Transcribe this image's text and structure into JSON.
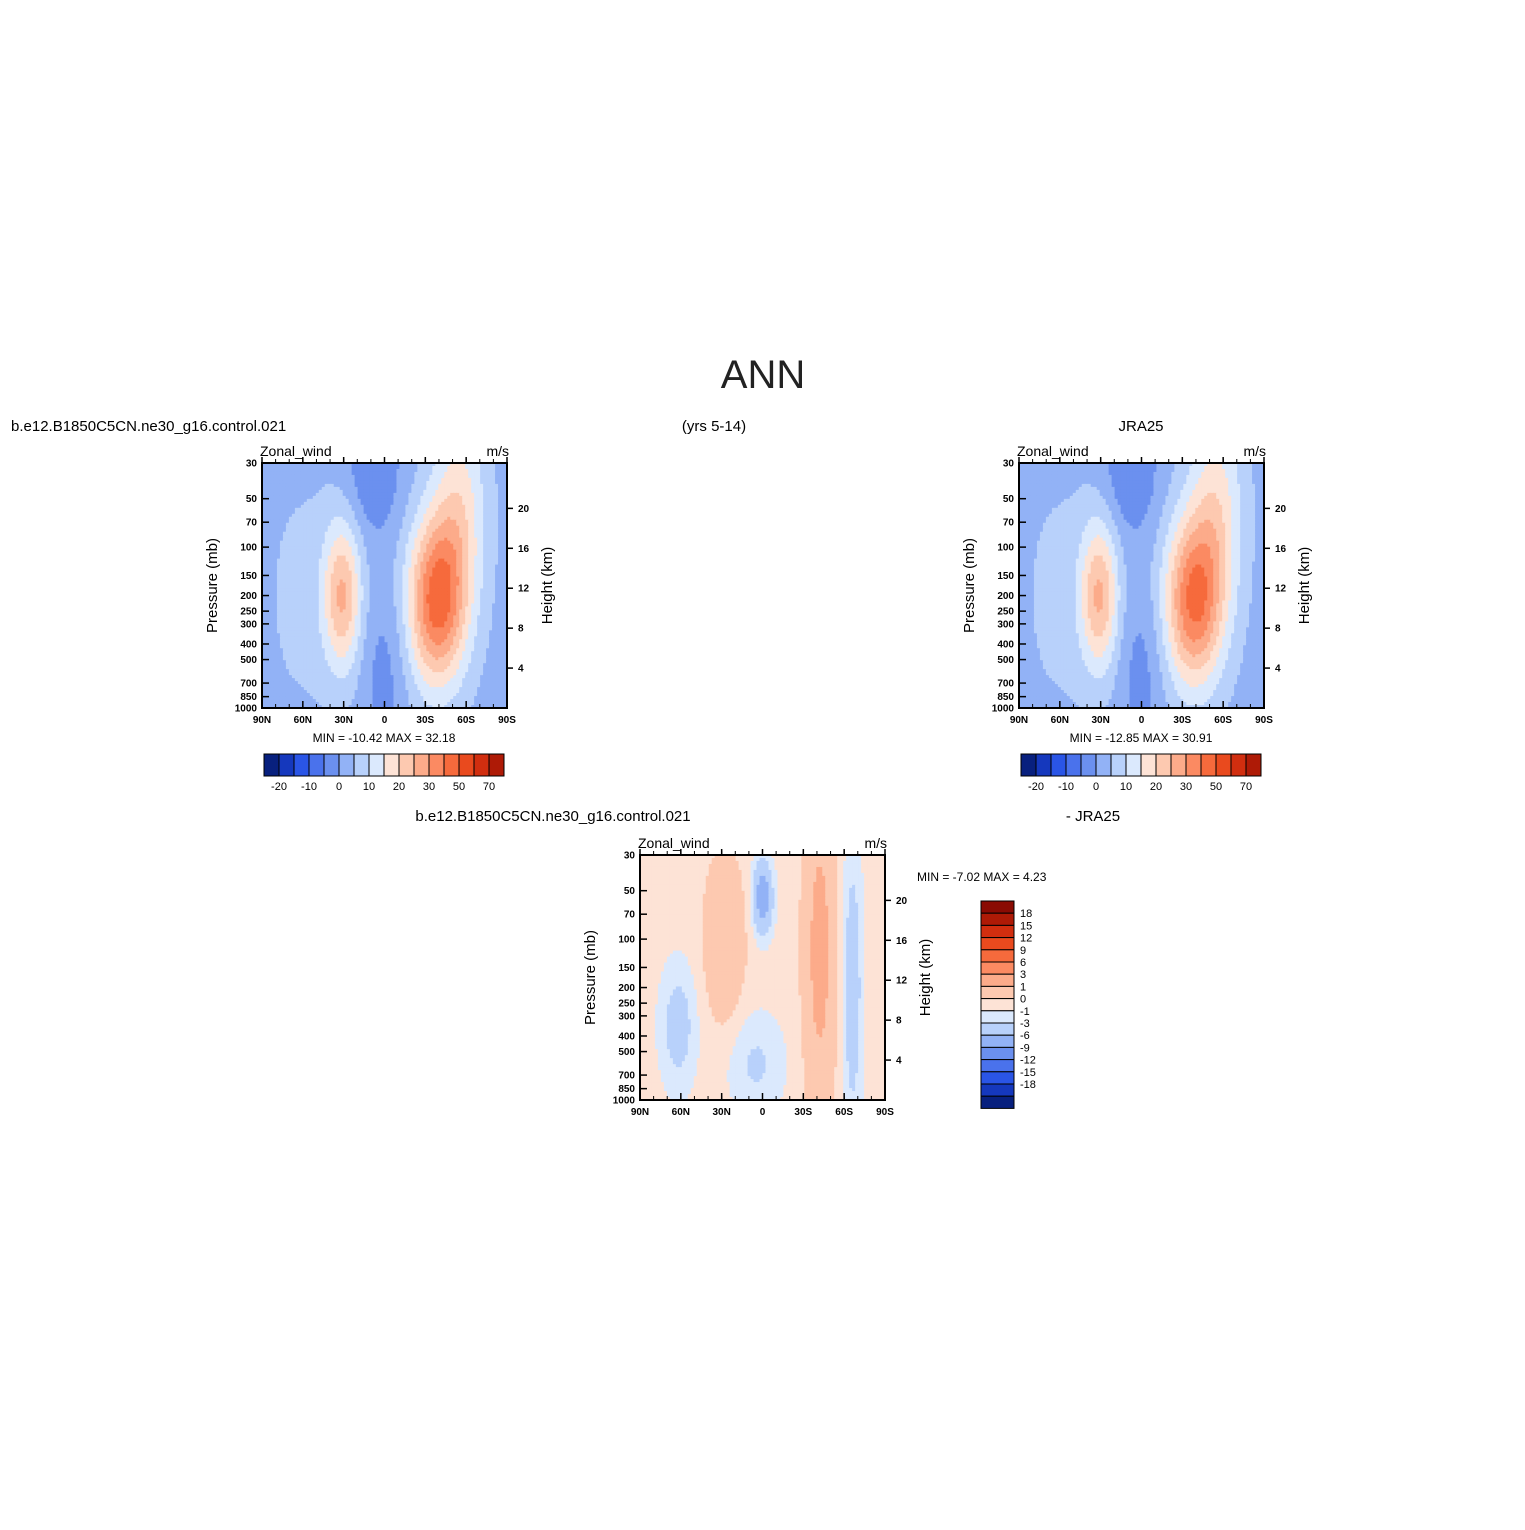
{
  "page_title": "ANN",
  "chart_data": [
    {
      "type": "heatmap",
      "case_label": "b.e12.B1850C5CN.ne30_g16.control.021",
      "period_label": "(yrs 5-14)",
      "left_title": "Zonal_wind",
      "right_title": "m/s",
      "ylabel": "Pressure (mb)",
      "ylabel_right": "Height (km)",
      "x_tick_labels": [
        "90N",
        "60N",
        "30N",
        "0",
        "30S",
        "60S",
        "90S"
      ],
      "y_tick_labels": [
        30,
        50,
        70,
        100,
        150,
        200,
        250,
        300,
        400,
        500,
        700,
        850,
        1000
      ],
      "y_right_tick_labels": [
        4,
        8,
        12,
        16,
        20
      ],
      "stats_text": "MIN = -10.42   MAX = 32.18",
      "min": -10.42,
      "max": 32.18,
      "colorbar_levels": [
        -25,
        -20,
        -15,
        -10,
        -5,
        0,
        5,
        10,
        15,
        20,
        25,
        30,
        40,
        50,
        60,
        70
      ],
      "colorbar_tick_labels": [
        "-20",
        "-10",
        "0",
        "10",
        "20",
        "30",
        "50",
        "70"
      ],
      "jets": [
        {
          "lat": -35,
          "pressure": 200,
          "value": 32.18
        },
        {
          "lat": 30,
          "pressure": 200,
          "value": 22
        }
      ]
    },
    {
      "type": "heatmap",
      "case_label": "JRA25",
      "left_title": "Zonal_wind",
      "right_title": "m/s",
      "ylabel": "Pressure (mb)",
      "ylabel_right": "Height (km)",
      "x_tick_labels": [
        "90N",
        "60N",
        "30N",
        "0",
        "30S",
        "60S",
        "90S"
      ],
      "y_tick_labels": [
        30,
        50,
        70,
        100,
        150,
        200,
        250,
        300,
        400,
        500,
        700,
        850,
        1000
      ],
      "y_right_tick_labels": [
        4,
        8,
        12,
        16,
        20
      ],
      "stats_text": "MIN = -12.85   MAX = 30.91",
      "min": -12.85,
      "max": 30.91,
      "colorbar_levels": [
        -25,
        -20,
        -15,
        -10,
        -5,
        0,
        5,
        10,
        15,
        20,
        25,
        30,
        40,
        50,
        60,
        70
      ],
      "colorbar_tick_labels": [
        "-20",
        "-10",
        "0",
        "10",
        "20",
        "30",
        "50",
        "70"
      ],
      "jets": [
        {
          "lat": -35,
          "pressure": 200,
          "value": 30.91
        },
        {
          "lat": 30,
          "pressure": 200,
          "value": 22
        }
      ]
    },
    {
      "type": "heatmap",
      "case_label": "b.e12.B1850C5CN.ne30_g16.control.021",
      "period_label": "- JRA25",
      "left_title": "Zonal_wind",
      "right_title": "m/s",
      "ylabel": "Pressure (mb)",
      "ylabel_right": "Height (km)",
      "x_tick_labels": [
        "90N",
        "60N",
        "30N",
        "0",
        "30S",
        "60S",
        "90S"
      ],
      "y_tick_labels": [
        30,
        50,
        70,
        100,
        150,
        200,
        250,
        300,
        400,
        500,
        700,
        850,
        1000
      ],
      "y_right_tick_labels": [
        4,
        8,
        12,
        16,
        20
      ],
      "stats_text": "MIN =   -7.02   MAX =     4.23",
      "min": -7.02,
      "max": 4.23,
      "colorbar_tick_labels": [
        "18",
        "15",
        "12",
        "9",
        "6",
        "3",
        "1",
        "0",
        "-1",
        "-3",
        "-6",
        "-9",
        "-12",
        "-15",
        "-18"
      ]
    }
  ],
  "colors": {
    "positive_scale": [
      "#fde3d6",
      "#fdc9b0",
      "#fcab8a",
      "#fb8a62",
      "#f66a3c",
      "#e94a1e",
      "#d12e0f",
      "#ae1a06",
      "#8a0b03"
    ],
    "negative_scale": [
      "#dbe9fd",
      "#b8d1fb",
      "#92b2f6",
      "#6b90ef",
      "#4a72ec",
      "#2a55e6",
      "#1538bd",
      "#08207e"
    ],
    "background": "#ffffff"
  }
}
